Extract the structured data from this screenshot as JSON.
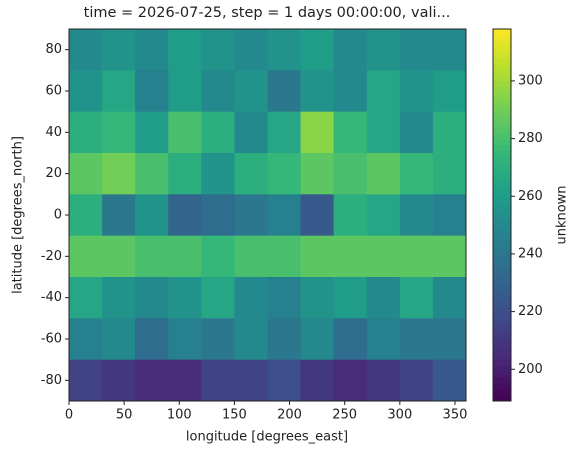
{
  "chart_data": {
    "type": "heatmap",
    "title": "time = 2026-07-25, step = 1 days 00:00:00, vali...",
    "x_label": "longitude [degrees_east]",
    "y_label": "latitude [degrees_north]",
    "colorbar_label": "unknown",
    "colormap": "viridis",
    "x": [
      15,
      45,
      75,
      105,
      135,
      165,
      195,
      225,
      255,
      285,
      315,
      345
    ],
    "y": [
      80,
      60,
      40,
      20,
      0,
      -20,
      -40,
      -60,
      -80
    ],
    "z": [
      [
        250,
        255,
        250,
        260,
        255,
        250,
        255,
        260,
        250,
        255,
        250,
        250
      ],
      [
        255,
        265,
        245,
        260,
        250,
        255,
        240,
        255,
        250,
        265,
        255,
        260
      ],
      [
        270,
        275,
        260,
        280,
        270,
        250,
        265,
        295,
        275,
        265,
        250,
        270
      ],
      [
        285,
        290,
        280,
        270,
        255,
        270,
        275,
        285,
        280,
        285,
        275,
        270
      ],
      [
        270,
        240,
        255,
        230,
        235,
        240,
        245,
        225,
        270,
        265,
        250,
        245
      ],
      [
        285,
        285,
        280,
        280,
        275,
        280,
        280,
        285,
        285,
        285,
        285,
        285
      ],
      [
        265,
        255,
        250,
        255,
        265,
        250,
        245,
        255,
        260,
        250,
        265,
        250
      ],
      [
        245,
        250,
        235,
        245,
        240,
        250,
        240,
        250,
        235,
        245,
        240,
        240
      ],
      [
        215,
        210,
        205,
        205,
        215,
        215,
        220,
        210,
        205,
        210,
        215,
        225
      ]
    ],
    "xlim": [
      0,
      360
    ],
    "xticks": [
      0,
      50,
      100,
      150,
      200,
      250,
      300,
      350
    ],
    "ylim": [
      -90,
      90
    ],
    "yticks": [
      -80,
      -60,
      -40,
      -20,
      0,
      20,
      40,
      60,
      80
    ],
    "clim": [
      189,
      318
    ],
    "cticks": [
      200,
      220,
      240,
      260,
      280,
      300
    ]
  }
}
